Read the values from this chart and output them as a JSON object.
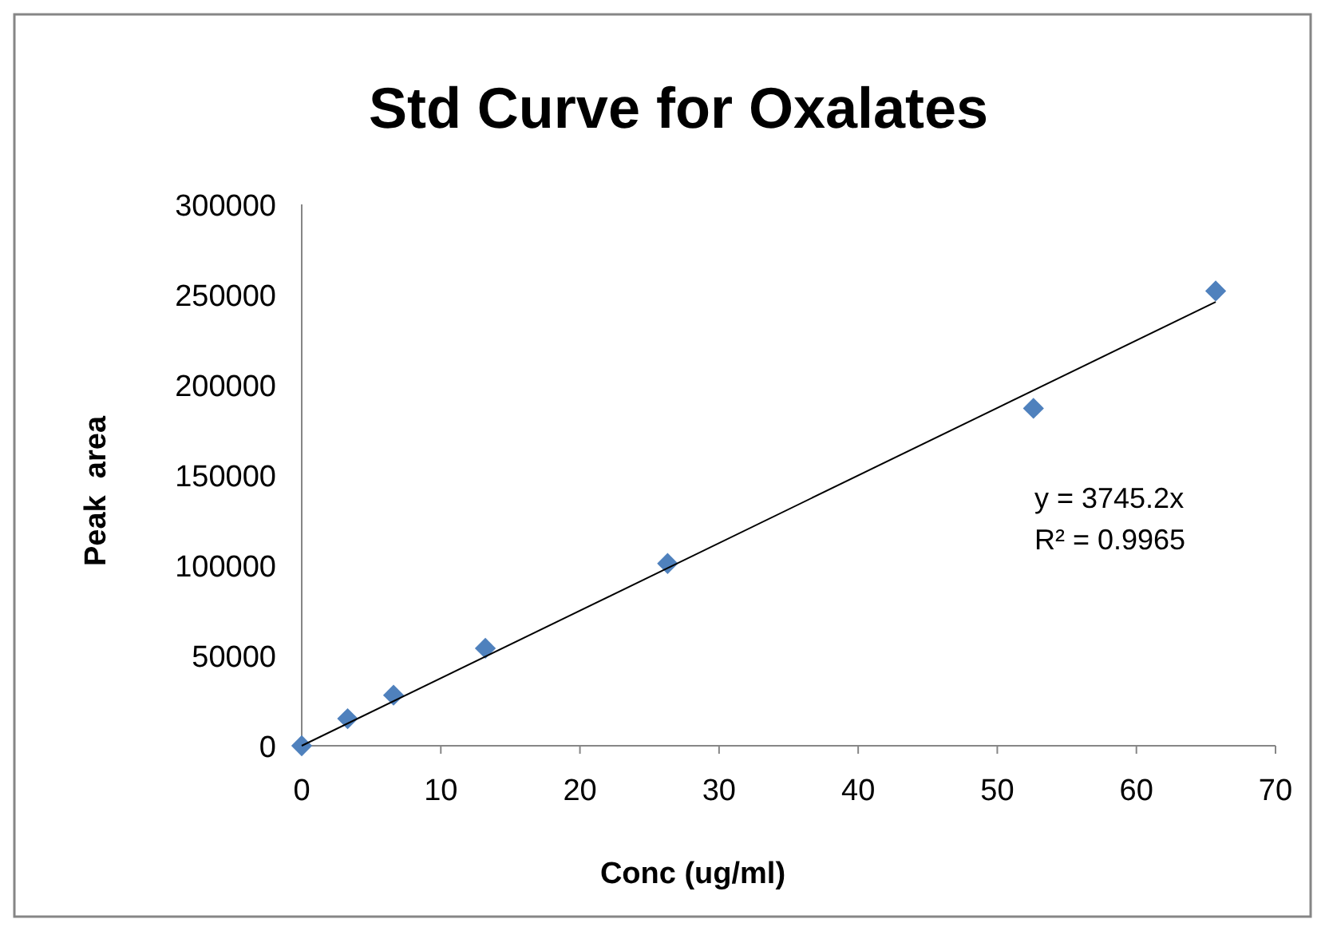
{
  "chart_data": {
    "type": "scatter",
    "title": "Std Curve for Oxalates",
    "xlabel": "Conc (ug/ml)",
    "ylabel": "Peak  area",
    "xlim": [
      0,
      70
    ],
    "xticks": [
      0,
      10,
      20,
      30,
      40,
      50,
      60,
      70
    ],
    "ylim": [
      0,
      300000
    ],
    "yticks": [
      0,
      50000,
      100000,
      150000,
      200000,
      250000,
      300000
    ],
    "grid": false,
    "series": [
      {
        "color": "#4f81bd",
        "marker": "diamond",
        "x": [
          0,
          3.3,
          6.6,
          13.2,
          26.3,
          52.6,
          65.7
        ],
        "values": [
          0,
          15000,
          28000,
          54000,
          101000,
          187000,
          252000
        ]
      },
      {
        "type": "line",
        "color": "#000000",
        "x": [
          0,
          65.7
        ],
        "values": [
          0,
          246000
        ]
      }
    ],
    "annotations": [
      "y = 3745.2x",
      "R² = 0.9965"
    ]
  }
}
